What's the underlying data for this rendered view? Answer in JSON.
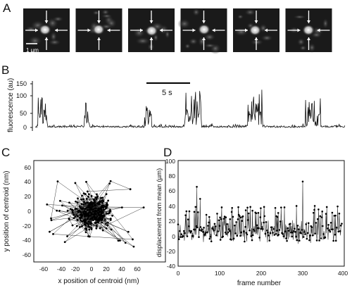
{
  "panels": {
    "a": {
      "letter": "A",
      "scale_bar_label": "1 µm",
      "frame_count": 6
    },
    "b": {
      "letter": "B",
      "ylabel": "fluorescence (au)",
      "yticks": [
        "150",
        "100",
        "50",
        "0"
      ],
      "scale_bar_label": "5 s"
    },
    "c": {
      "letter": "C",
      "xlabel": "x position of centroid (nm)",
      "ylabel": "y position of centroid (nm)",
      "xticks": [
        "-60",
        "-40",
        "-20",
        "0",
        "20",
        "40",
        "60"
      ],
      "yticks": [
        "60",
        "40",
        "20",
        "0",
        "-20",
        "-40",
        "-60"
      ]
    },
    "d": {
      "letter": "D",
      "xlabel": "frame number",
      "ylabel": "displacement from mean (µm)",
      "xticks": [
        "0",
        "100",
        "200",
        "300",
        "400"
      ],
      "yticks": [
        "100",
        "80",
        "60",
        "40",
        "20",
        "0",
        "-20",
        "-40"
      ]
    }
  },
  "chart_data": [
    {
      "type": "line",
      "panel": "B",
      "ylabel": "fluorescence (au)",
      "ylim": [
        -10,
        150
      ],
      "scale_bar_s": 5,
      "baseline": 0,
      "bursts": [
        {
          "start_s": 0.3,
          "end_s": 1.4,
          "peak": 110
        },
        {
          "start_s": 5.8,
          "end_s": 6.4,
          "peak": 95
        },
        {
          "start_s": 12.9,
          "end_s": 13.7,
          "peak": 85
        },
        {
          "start_s": 17.6,
          "end_s": 19.6,
          "peak": 130
        },
        {
          "start_s": 24.9,
          "end_s": 26.8,
          "peak": 130
        },
        {
          "start_s": 31.8,
          "end_s": 33.6,
          "peak": 100
        }
      ],
      "duration_s": 36.5
    },
    {
      "type": "scatter",
      "panel": "C",
      "xlabel": "x position of centroid (nm)",
      "ylabel": "y position of centroid (nm)",
      "xlim": [
        -70,
        75
      ],
      "ylim": [
        -70,
        75
      ],
      "center": [
        0,
        0
      ],
      "spread_sd_nm": [
        13,
        11
      ],
      "n_points": 320,
      "outliers": [
        [
          -58,
          12
        ],
        [
          55,
          -45
        ],
        [
          68,
          8
        ],
        [
          -50,
          -28
        ],
        [
          48,
          -25
        ],
        [
          -10,
          27
        ],
        [
          15,
          18
        ]
      ]
    },
    {
      "type": "line",
      "panel": "D",
      "xlabel": "frame number",
      "ylabel": "displacement from mean (µm)",
      "xlim": [
        0,
        400
      ],
      "ylim": [
        -40,
        100
      ],
      "n_frames": 395,
      "peaks": [
        [
          45,
          68
        ],
        [
          53,
          52
        ],
        [
          130,
          40
        ],
        [
          300,
          75
        ],
        [
          338,
          38
        ]
      ]
    }
  ]
}
